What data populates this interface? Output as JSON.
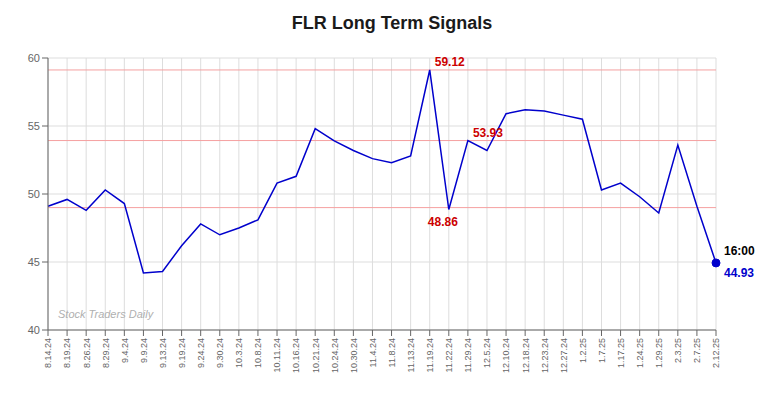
{
  "chart_data": {
    "type": "line",
    "title": "FLR Long Term Signals",
    "categories": [
      "8.14.24",
      "8.19.24",
      "8.26.24",
      "8.29.24",
      "9.4.24",
      "9.9.24",
      "9.13.24",
      "9.19.24",
      "9.24.24",
      "9.30.24",
      "10.3.24",
      "10.8.24",
      "10.11.24",
      "10.16.24",
      "10.21.24",
      "10.24.24",
      "10.30.24",
      "11.4.24",
      "11.8.24",
      "11.13.24",
      "11.19.24",
      "11.22.24",
      "11.29.24",
      "12.5.24",
      "12.10.24",
      "12.18.24",
      "12.23.24",
      "12.27.24",
      "1.2.25",
      "1.7.25",
      "1.17.25",
      "1.24.25",
      "1.29.25",
      "2.3.25",
      "2.7.25",
      "2.12.25"
    ],
    "values": [
      49.1,
      49.6,
      48.8,
      50.3,
      49.3,
      44.2,
      44.3,
      46.2,
      47.8,
      47.0,
      47.5,
      48.1,
      50.8,
      51.3,
      54.8,
      53.9,
      53.2,
      52.6,
      52.3,
      52.8,
      59.12,
      48.86,
      53.93,
      53.2,
      55.9,
      56.2,
      56.1,
      55.8,
      55.5,
      50.3,
      50.8,
      49.8,
      48.6,
      53.6,
      49.1,
      44.93
    ],
    "color": "#0000cc",
    "ylim": [
      40,
      60
    ],
    "yticks": [
      40,
      45,
      50,
      55,
      60
    ],
    "grid": true,
    "reference_lines": [
      {
        "y": 49.0,
        "color": "#f5a0a0"
      },
      {
        "y": 53.93,
        "color": "#f5a0a0"
      },
      {
        "y": 59.12,
        "color": "#f5a0a0"
      }
    ],
    "annotations": [
      {
        "text": "59.12",
        "x": "11.19.24",
        "y": 59.12,
        "color": "#cc0000"
      },
      {
        "text": "48.86",
        "x": "11.22.24",
        "y": 48.86,
        "color": "#cc0000"
      },
      {
        "text": "53.93",
        "x": "11.29.24",
        "y": 53.93,
        "color": "#cc0000"
      },
      {
        "text": "16:00",
        "x": "2.12.25",
        "y": 44.93,
        "color": "#000000"
      },
      {
        "text": "44.93",
        "x": "2.12.25",
        "y": 44.93,
        "color": "#0000cc"
      },
      {
        "x": "2.12.25",
        "y": 44.93,
        "marker": "circle",
        "color": "#0000cc"
      },
      {
        "text": "Stock Traders Daily",
        "color": "#b0b0b0",
        "style": "italic"
      }
    ]
  }
}
